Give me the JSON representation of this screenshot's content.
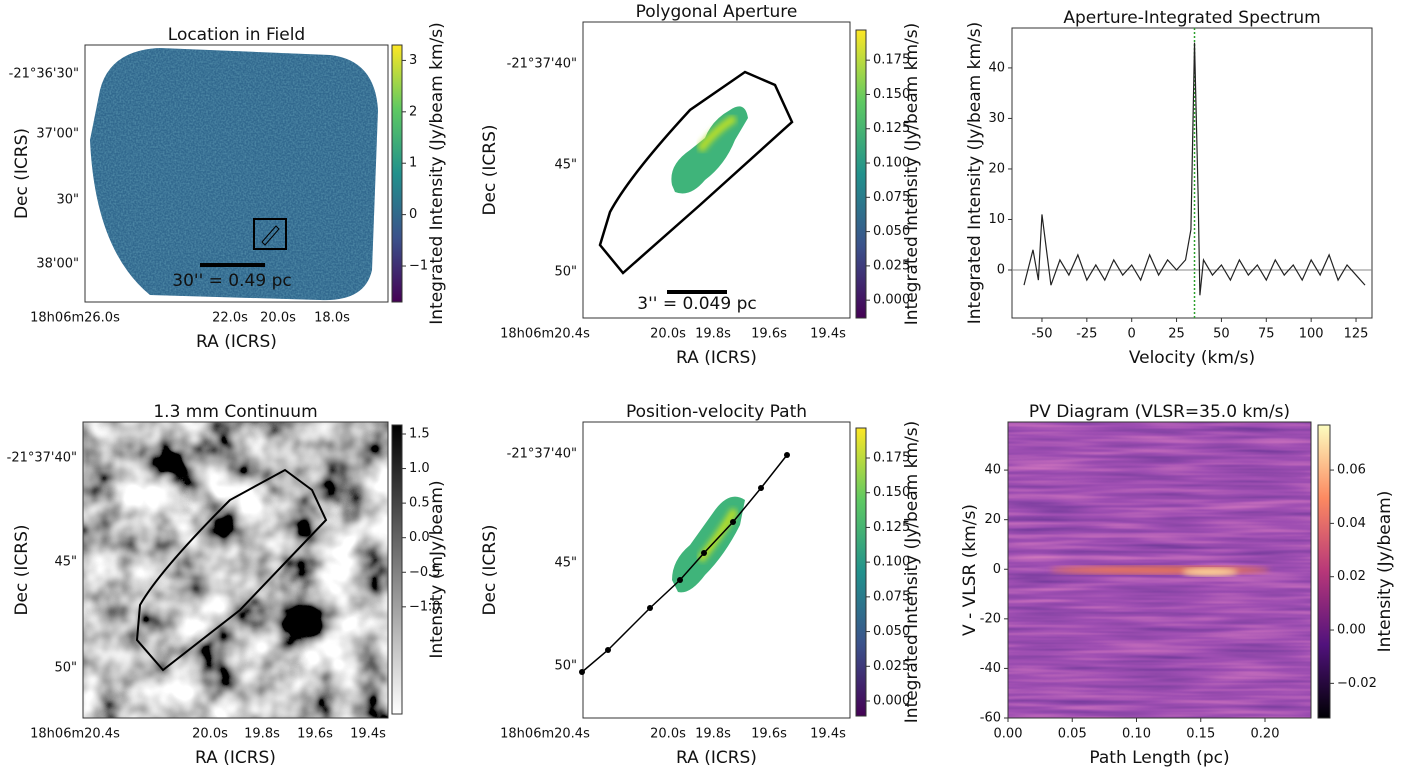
{
  "chart_data": [
    {
      "type": "image",
      "title": "Location in Field",
      "xlabel": "RA (ICRS)",
      "ylabel": "Dec (ICRS)",
      "xtick_labels": [
        "18h06m26.0s",
        "22.0s",
        "20.0s",
        "18.0s"
      ],
      "ytick_labels": [
        "-21°36'30\"",
        "37'00\"",
        "30\"",
        "38'00\""
      ],
      "scalebar": "30'' = 0.49 pc",
      "colorbar": {
        "label": "Integrated Intensity (Jy/beam km/s)",
        "lim": [
          -1.7,
          3.3
        ],
        "ticks": [
          {
            "value": -1,
            "label": "−1"
          },
          0,
          1,
          2,
          3
        ]
      }
    },
    {
      "type": "image",
      "title": "Polygonal Aperture",
      "xlabel": "RA (ICRS)",
      "ylabel": "Dec (ICRS)",
      "xtick_labels": [
        "18h06m20.4s",
        "20.0s",
        "19.8s",
        "19.6s",
        "19.4s"
      ],
      "ytick_labels": [
        "-21°37'40\"",
        "45\"",
        "50\""
      ],
      "scalebar": "3'' = 0.049 pc",
      "colorbar": {
        "label": "Integrated Intensity (Jy/beam km/s)",
        "lim": [
          -0.013,
          0.197
        ],
        "ticks": [
          {
            "value": 0,
            "label": "0.000"
          },
          {
            "value": 0.025,
            "label": "0.025"
          },
          {
            "value": 0.05,
            "label": "0.050"
          },
          {
            "value": 0.075,
            "label": "0.075"
          },
          {
            "value": 0.1,
            "label": "0.100"
          },
          {
            "value": 0.125,
            "label": "0.125"
          },
          {
            "value": 0.15,
            "label": "0.150"
          },
          {
            "value": 0.175,
            "label": "0.175"
          }
        ]
      }
    },
    {
      "type": "line",
      "title": "Aperture-Integrated Spectrum",
      "xlabel": "Velocity (km/s)",
      "ylabel": "Integrated Intensity (Jy/beam km/s)",
      "x": [
        -60,
        -55,
        -52,
        -50,
        -45,
        -40,
        -35,
        -30,
        -25,
        -20,
        -15,
        -10,
        -5,
        0,
        5,
        10,
        15,
        20,
        25,
        30,
        33,
        35,
        37,
        38,
        40,
        45,
        50,
        55,
        60,
        65,
        70,
        75,
        80,
        85,
        90,
        95,
        100,
        105,
        110,
        115,
        120,
        125,
        130
      ],
      "values": [
        -3,
        4,
        -2,
        11,
        -3,
        2,
        -1,
        3,
        -2,
        1,
        -2,
        2,
        -1,
        1,
        -2,
        3,
        -1,
        2,
        0,
        2,
        8,
        45,
        15,
        -5,
        2,
        -1,
        1,
        -2,
        2,
        -1,
        1,
        -2,
        2,
        -1,
        1,
        -2,
        2,
        -1,
        3,
        -2,
        1,
        -1,
        -3
      ],
      "color": "#222222",
      "vline": 35,
      "vline_color": "#2ca02c",
      "xlim": [
        -66.7,
        133.9
      ],
      "xticks": [
        -50,
        -25,
        0,
        25,
        50,
        75,
        100,
        125
      ],
      "ylim": [
        -9.5,
        47.9
      ],
      "yticks": [
        0,
        10,
        20,
        30,
        40
      ]
    },
    {
      "type": "image",
      "title": "1.3 mm Continuum",
      "xlabel": "RA (ICRS)",
      "ylabel": "Dec (ICRS)",
      "xtick_labels": [
        "18h06m20.4s",
        "20.0s",
        "19.8s",
        "19.6s",
        "19.4s"
      ],
      "ytick_labels": [
        "-21°37'40\"",
        "45\"",
        "50\""
      ],
      "colorbar": {
        "label": "Intensity (mJy/beam)",
        "lim": [
          -2.55,
          1.63
        ],
        "ticks": [
          {
            "value": -1,
            "label": "−1.0"
          },
          {
            "value": -0.5,
            "label": "−0.5"
          },
          {
            "value": 0,
            "label": "0.0"
          },
          {
            "value": 0.5,
            "label": "0.5"
          },
          {
            "value": 1,
            "label": "1.0"
          },
          {
            "value": 1.5,
            "label": "1.5"
          }
        ]
      }
    },
    {
      "type": "image",
      "title": "Position-velocity Path",
      "xlabel": "RA (ICRS)",
      "ylabel": "Dec (ICRS)",
      "xtick_labels": [
        "18h06m20.4s",
        "20.0s",
        "19.8s",
        "19.6s",
        "19.4s"
      ],
      "ytick_labels": [
        "-21°37'40\"",
        "45\"",
        "50\""
      ],
      "colorbar": {
        "label": "Integrated Intensity (Jy/beam km/s)",
        "lim": [
          -0.0108,
          0.1966
        ],
        "ticks": [
          {
            "value": 0,
            "label": "0.000"
          },
          {
            "value": 0.025,
            "label": "0.025"
          },
          {
            "value": 0.05,
            "label": "0.050"
          },
          {
            "value": 0.075,
            "label": "0.075"
          },
          {
            "value": 0.1,
            "label": "0.100"
          },
          {
            "value": 0.125,
            "label": "0.125"
          },
          {
            "value": 0.15,
            "label": "0.150"
          },
          {
            "value": 0.175,
            "label": "0.175"
          }
        ]
      }
    },
    {
      "type": "pv",
      "title": "PV Diagram (VLSR=35.0 km/s)",
      "xlabel": "Path Length (pc)",
      "ylabel": "V - VLSR (km/s)",
      "xlim": [
        0,
        0.2358
      ],
      "xticks": [
        {
          "value": 0,
          "label": "0.00"
        },
        {
          "value": 0.05,
          "label": "0.05"
        },
        {
          "value": 0.1,
          "label": "0.10"
        },
        {
          "value": 0.15,
          "label": "0.15"
        },
        {
          "value": 0.2,
          "label": "0.20"
        }
      ],
      "ylim": [
        -60,
        59.4
      ],
      "yticks": [
        -60,
        -40,
        -20,
        0,
        20,
        40
      ],
      "colorbar": {
        "label": "Intensity (Jy/beam)",
        "lim": [
          -0.033,
          0.0769
        ],
        "ticks": [
          {
            "value": -0.02,
            "label": "−0.02"
          },
          {
            "value": 0,
            "label": "0.00"
          },
          {
            "value": 0.02,
            "label": "0.02"
          },
          {
            "value": 0.04,
            "label": "0.04"
          },
          {
            "value": 0.06,
            "label": "0.06"
          }
        ]
      }
    }
  ]
}
